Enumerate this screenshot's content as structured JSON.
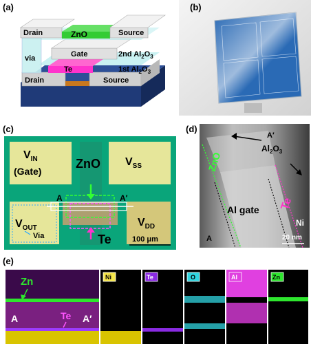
{
  "panels": {
    "a": {
      "label": "(a)",
      "layers": {
        "drain_top": "Drain",
        "zno": "ZnO",
        "source_top": "Source",
        "via": "via",
        "gate": "Gate",
        "al2o3_2nd": "2nd Al",
        "al2o3_2nd_sub": "2",
        "al2o3_2nd_o": "O",
        "al2o3_2nd_sub2": "3",
        "te": "Te",
        "al2o3_1st": "1st Al",
        "al2o3_1st_sub": "2",
        "al2o3_1st_o": "O",
        "al2o3_1st_sub2": "3",
        "drain_bottom": "Drain",
        "source_bottom": "Source"
      }
    },
    "b": {
      "label": "(b)"
    },
    "c": {
      "label": "(c)",
      "vin": "V",
      "vin_sub": "IN",
      "vin_gate": "(Gate)",
      "vss": "V",
      "vss_sub": "SS",
      "zno": "ZnO",
      "a": "A",
      "a_prime": "A′",
      "vout": "V",
      "vout_sub": "OUT",
      "vdd": "V",
      "vdd_sub": "DD",
      "via": "Via",
      "te": "Te",
      "scale": "100 μm"
    },
    "d": {
      "label": "(d)",
      "zno": "ZnO",
      "a_prime": "A′",
      "al2o3": "Al",
      "al2o3_sub": "2",
      "al2o3_o": "O",
      "al2o3_sub2": "3",
      "te": "Te",
      "al_gate": "Al gate",
      "ni": "Ni",
      "a": "A",
      "scale": "20 nm"
    },
    "e": {
      "label": "(e)",
      "zn": "Zn",
      "a": "A",
      "te": "Te",
      "a_prime": "A′",
      "maps": [
        "Ni",
        "Te",
        "O",
        "Al",
        "Zn"
      ]
    }
  },
  "colors": {
    "zno_green": "#33cc33",
    "te_magenta": "#ff33cc",
    "gate_gray": "#d9d9d9",
    "al2o3_cyan": "#bfeef0",
    "substrate_navy": "#1f3a78",
    "chip_green": "#0aa57a",
    "pad_yellow": "#e6e69a",
    "map_ni": "#d9c400",
    "map_te": "#8a2be2",
    "map_o": "#31d5e0",
    "map_al": "#e040e0",
    "map_zn": "#2ee62e"
  }
}
